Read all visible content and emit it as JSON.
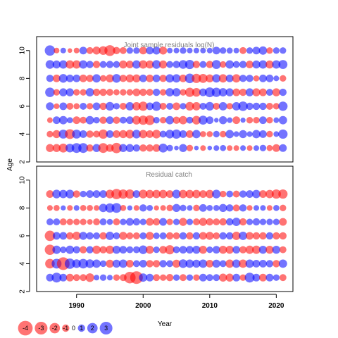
{
  "chart_data": {
    "type": "bubble",
    "xlabel": "Year",
    "ylabel": "Age",
    "xlim": [
      1984,
      2022.5
    ],
    "x_ticks": [
      1990,
      2000,
      2010,
      2020
    ],
    "ages": [
      3,
      4,
      5,
      6,
      7,
      8,
      9,
      10
    ],
    "years": [
      1986,
      1987,
      1988,
      1989,
      1990,
      1991,
      1992,
      1993,
      1994,
      1995,
      1996,
      1997,
      1998,
      1999,
      2000,
      2001,
      2002,
      2003,
      2004,
      2005,
      2006,
      2007,
      2008,
      2009,
      2010,
      2011,
      2012,
      2013,
      2014,
      2015,
      2016,
      2017,
      2018,
      2019,
      2020,
      2021
    ],
    "colors": {
      "positive": "#0000ff",
      "negative": "#ff0000"
    },
    "legend": {
      "values": [
        -4,
        -3,
        -2,
        -1,
        0,
        1,
        2,
        3
      ],
      "labels": [
        "-4",
        "-3",
        "-2",
        "-1",
        "0",
        "1",
        "2",
        "3"
      ]
    },
    "panels": [
      {
        "title": "Joint sample residuals log(N)",
        "ylim": [
          2,
          11
        ],
        "y_ticks": [
          2,
          4,
          6,
          8,
          10
        ],
        "residuals": [
          [
            -1.2,
            -1.2,
            -1.5,
            1.4,
            1.8,
            1.8,
            -1.0,
            1.2,
            -1.8,
            -1.1,
            -2.0,
            1.2,
            1.2,
            1.0,
            -1.0,
            -1.0,
            -1.1,
            1.5,
            0.8,
            0.4,
            1.2,
            -0.8,
            0.4,
            -0.6,
            0.4,
            0.6,
            0.7,
            -0.6,
            -0.6,
            0.6,
            -0.6,
            0.6,
            0.8,
            -0.7,
            -1.1,
            1.1
          ],
          [
            -0.8,
            -1.2,
            1.5,
            -1.8,
            1.5,
            1.1,
            -1.0,
            -0.9,
            -1.6,
            1.1,
            -1.1,
            -1.2,
            -1.4,
            1.4,
            -1.3,
            -1.1,
            -1.4,
            0.9,
            1.4,
            1.6,
            1.1,
            -1.1,
            1.3,
            -0.7,
            -0.7,
            0.8,
            -0.8,
            1.3,
            0.6,
            1.2,
            0.6,
            1.3,
            1.1,
            -0.8,
            0.6,
            1.6
          ],
          [
            -0.6,
            1.1,
            1.3,
            0.7,
            -1.1,
            -0.9,
            1.3,
            0.8,
            -1.0,
            1.1,
            -1.0,
            0.9,
            1.1,
            -1.4,
            -1.6,
            -1.8,
            0.8,
            -0.8,
            1.3,
            -1.0,
            -1.3,
            0.9,
            -1.4,
            1.5,
            1.1,
            0.4,
            1.2,
            0.6,
            -1.1,
            0.5,
            -0.8,
            -0.8,
            1.1,
            -0.8,
            0.6,
            1.3
          ],
          [
            1.2,
            -0.6,
            1.1,
            -0.9,
            -0.7,
            0.9,
            -0.8,
            1.1,
            -1.0,
            1.4,
            0.8,
            -0.9,
            1.3,
            -1.3,
            -1.6,
            1.1,
            1.6,
            -0.9,
            0.9,
            -1.1,
            0.8,
            -1.4,
            -1.3,
            0.9,
            1.4,
            -0.9,
            1.3,
            -0.8,
            1.3,
            1.7,
            1.0,
            1.0,
            1.0,
            -0.9,
            -0.8,
            1.6
          ],
          [
            1.7,
            -0.8,
            1.2,
            1.2,
            -0.8,
            -0.8,
            1.3,
            -1.0,
            -1.0,
            -0.9,
            -0.7,
            -0.8,
            -0.8,
            -1.1,
            -1.0,
            -0.9,
            1.0,
            -0.8,
            1.3,
            1.3,
            -0.8,
            -1.6,
            -1.4,
            1.1,
            1.8,
            1.6,
            1.3,
            1.2,
            -1.1,
            -1.0,
            1.2,
            -1.2,
            -1.1,
            0.9,
            -1.2,
            1.0
          ],
          [
            1.0,
            -1.1,
            1.4,
            1.1,
            1.1,
            -1.1,
            -1.0,
            1.3,
            -0.8,
            -1.2,
            1.4,
            -1.0,
            -1.2,
            -1.2,
            1.1,
            -1.1,
            1.1,
            -1.0,
            1.3,
            1.3,
            -1.1,
            1.7,
            -1.6,
            -1.5,
            -1.2,
            1.3,
            -1.3,
            1.1,
            -1.3,
            1.0,
            1.0,
            -0.7,
            1.1,
            1.1,
            0.6,
            -0.8
          ],
          [
            1.4,
            1.2,
            1.3,
            -1.3,
            -1.3,
            1.3,
            1.0,
            -1.0,
            0.9,
            1.0,
            0.9,
            -1.2,
            -1.1,
            1.3,
            -1.3,
            -1.2,
            1.4,
            -1.2,
            0.9,
            1.0,
            1.4,
            1.6,
            -1.0,
            0.9,
            -1.0,
            1.5,
            -0.8,
            1.3,
            0.9,
            1.0,
            -1.1,
            1.2,
            1.3,
            -1.2,
            1.3,
            1.5
          ],
          [
            2.0,
            -0.6,
            0.6,
            -0.4,
            -0.6,
            1.1,
            -0.9,
            -1.2,
            -1.4,
            -2.2,
            -1.0,
            -0.9,
            0.8,
            0.8,
            -1.1,
            1.1,
            1.2,
            -1.2,
            0.6,
            0.6,
            0.8,
            0.6,
            0.6,
            0.6,
            0.6,
            1.1,
            0.8,
            0.7,
            0.6,
            -0.9,
            0.8,
            1.1,
            1.3,
            -0.8,
            0.8,
            0.8
          ]
        ]
      },
      {
        "title": "Residual catch",
        "ylim": [
          2,
          11
        ],
        "y_ticks": [
          2,
          4,
          6,
          8,
          10
        ],
        "residuals": [
          [
            1.1,
            1.8,
            1.1,
            -1.1,
            -0.9,
            -0.9,
            -1.4,
            0.6,
            0.8,
            0.6,
            -0.8,
            -0.9,
            -2.5,
            -3.0,
            1.3,
            1.1,
            -0.9,
            -0.8,
            -1.0,
            0.8,
            -0.9,
            0.8,
            -0.8,
            1.1,
            0.9,
            0.9,
            -1.2,
            -1.2,
            1.1,
            -0.8,
            1.8,
            1.1,
            -1.1,
            1.1,
            0.8,
            -0.9
          ],
          [
            -1.7,
            1.8,
            -3.0,
            2.0,
            1.4,
            1.7,
            1.4,
            1.3,
            0.8,
            -1.2,
            1.2,
            1.3,
            -1.1,
            0.9,
            1.1,
            -1.0,
            -1.0,
            1.0,
            0.9,
            -1.2,
            1.4,
            1.3,
            1.2,
            1.3,
            -1.1,
            1.2,
            0.9,
            -1.3,
            1.3,
            -1.3,
            1.3,
            1.1,
            1.1,
            1.0,
            -1.0,
            1.3
          ],
          [
            -2.0,
            1.3,
            0.8,
            1.3,
            1.0,
            -1.0,
            1.0,
            -1.3,
            -1.0,
            -1.3,
            1.2,
            1.1,
            0.9,
            0.9,
            1.4,
            -1.2,
            0.8,
            -1.1,
            -1.6,
            0.9,
            1.1,
            1.1,
            1.2,
            -1.2,
            0.8,
            1.1,
            -1.2,
            -1.2,
            1.1,
            -1.0,
            -1.3,
            -1.3,
            1.2,
            -1.2,
            1.2,
            -0.9
          ],
          [
            -2.0,
            1.1,
            1.1,
            -1.0,
            -1.3,
            1.2,
            1.0,
            0.9,
            -1.0,
            1.3,
            0.9,
            -1.2,
            -0.9,
            -0.9,
            0.9,
            -1.2,
            0.8,
            0.9,
            -1.0,
            -0.9,
            1.0,
            -1.0,
            1.0,
            -1.1,
            -1.2,
            -0.9,
            1.0,
            1.0,
            -1.3,
            1.3,
            -1.1,
            -1.0,
            -1.0,
            1.0,
            -1.0,
            -1.0
          ],
          [
            0.9,
            0.9,
            -0.9,
            -0.8,
            -0.8,
            -0.8,
            -0.6,
            -0.9,
            0.9,
            0.7,
            -0.9,
            0.8,
            1.1,
            1.0,
            0.8,
            -1.1,
            -1.0,
            1.1,
            -0.8,
            0.8,
            -1.2,
            0.8,
            -0.9,
            -1.2,
            -1.0,
            -0.9,
            -1.0,
            1.0,
            1.3,
            -1.0,
            0.8,
            1.0,
            0.8,
            0.8,
            0.8,
            -1.1
          ],
          [
            -0.6,
            -0.7,
            0.5,
            -0.6,
            0.6,
            -0.7,
            -0.7,
            -0.6,
            1.3,
            1.6,
            1.8,
            -0.7,
            0.5,
            -0.6,
            1.0,
            0.7,
            -0.5,
            -0.6,
            -0.8,
            1.2,
            0.8,
            0.6,
            -0.8,
            1.1,
            0.7,
            0.7,
            1.2,
            1.0,
            -0.9,
            1.0,
            -0.6,
            0.6,
            0.6,
            -0.6,
            0.7,
            -0.8
          ],
          [
            -1.1,
            1.4,
            1.3,
            1.4,
            -1.0,
            0.8,
            1.1,
            1.1,
            1.1,
            -1.4,
            -2.0,
            -1.6,
            -1.6,
            1.1,
            -1.4,
            -1.3,
            -1.3,
            -1.3,
            -1.1,
            1.4,
            -1.3,
            -1.3,
            -1.3,
            -1.1,
            -1.3,
            1.4,
            -0.8,
            0.9,
            -0.9,
            1.0,
            1.1,
            1.3,
            -1.1,
            -1.3,
            -1.6,
            -1.6
          ]
        ]
      }
    ]
  }
}
